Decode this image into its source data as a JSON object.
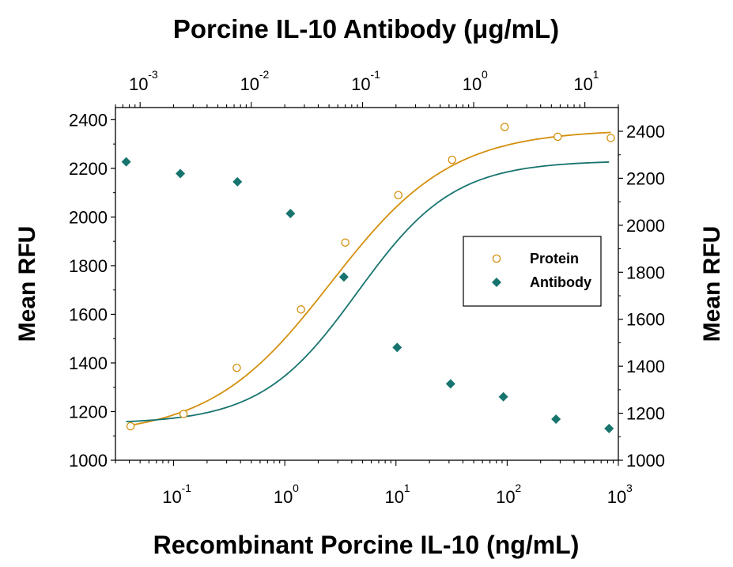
{
  "chart_data": {
    "type": "scatter",
    "title": "Porcine IL-10 Antibody (μg/mL)",
    "xlabel": "Recombinant Porcine IL-10 (ng/mL)",
    "ylabel": "Mean RFU",
    "ylabel_right": "Mean RFU",
    "xscale": "log",
    "xlim": [
      0.03,
      1000
    ],
    "ylim": [
      1000,
      2450
    ],
    "y_ticks": [
      1000,
      1200,
      1400,
      1600,
      1800,
      2000,
      2200,
      2400
    ],
    "x_ticks": [
      {
        "value": 0.1,
        "base": "10",
        "exp": "-1"
      },
      {
        "value": 1,
        "base": "10",
        "exp": "0"
      },
      {
        "value": 10,
        "base": "10",
        "exp": "1"
      },
      {
        "value": 100,
        "base": "10",
        "exp": "2"
      },
      {
        "value": 1000,
        "base": "10",
        "exp": "3"
      }
    ],
    "top_axis": {
      "scale": "log",
      "xlim": [
        0.0006,
        20
      ],
      "ticks": [
        {
          "value": 0.001,
          "base": "10",
          "exp": "-3"
        },
        {
          "value": 0.01,
          "base": "10",
          "exp": "-2"
        },
        {
          "value": 0.1,
          "base": "10",
          "exp": "-1"
        },
        {
          "value": 1,
          "base": "10",
          "exp": "0"
        },
        {
          "value": 10,
          "base": "10",
          "exp": "1"
        }
      ]
    },
    "right_axis": {
      "ylim": [
        1000,
        2400
      ],
      "ticks": [
        1000,
        1200,
        1400,
        1600,
        1800,
        2000,
        2200,
        2400
      ]
    },
    "legend": {
      "position": "center-right",
      "entries": [
        "Protein",
        "Antibody"
      ]
    },
    "grid": false,
    "series": [
      {
        "name": "Protein",
        "axis": "bottom-left",
        "marker": "open-circle",
        "color": "#D4900E",
        "fit": {
          "bottom": 1100,
          "top": 2360,
          "ec50": 2.6,
          "hill": 0.8
        },
        "points": [
          {
            "x": 0.041,
            "y": 1140
          },
          {
            "x": 0.123,
            "y": 1190
          },
          {
            "x": 0.37,
            "y": 1380
          },
          {
            "x": 1.4,
            "y": 1620
          },
          {
            "x": 3.5,
            "y": 1895
          },
          {
            "x": 10.5,
            "y": 2090
          },
          {
            "x": 32,
            "y": 2235
          },
          {
            "x": 95,
            "y": 2370
          },
          {
            "x": 285,
            "y": 2330
          },
          {
            "x": 855,
            "y": 2325
          }
        ]
      },
      {
        "name": "Antibody",
        "axis": "top-right",
        "marker": "filled-diamond",
        "color": "#17746E",
        "fit": {
          "bottom": 1155,
          "top": 2275,
          "ec50": 0.09,
          "hill": 1.0
        },
        "points": [
          {
            "x": 0.00075,
            "y": 2270
          },
          {
            "x": 0.0023,
            "y": 2220
          },
          {
            "x": 0.0075,
            "y": 2185
          },
          {
            "x": 0.0225,
            "y": 2050
          },
          {
            "x": 0.068,
            "y": 1780
          },
          {
            "x": 0.205,
            "y": 1480
          },
          {
            "x": 0.62,
            "y": 1325
          },
          {
            "x": 1.85,
            "y": 1270
          },
          {
            "x": 5.5,
            "y": 1175
          },
          {
            "x": 16.5,
            "y": 1135
          }
        ]
      }
    ]
  }
}
